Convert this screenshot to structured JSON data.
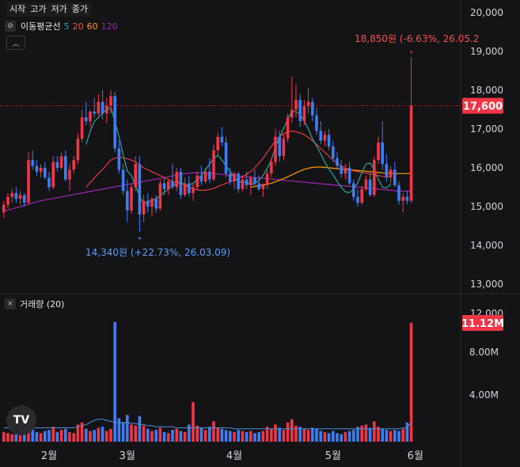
{
  "legend": {
    "ohlc_labels": [
      "시작",
      "고가",
      "저가",
      "종가"
    ],
    "ma_title": "이동평균선",
    "ma_periods": [
      {
        "label": "5",
        "color": "#26a69a"
      },
      {
        "label": "20",
        "color": "#ef5350"
      },
      {
        "label": "60",
        "color": "#ff9800"
      },
      {
        "label": "120",
        "color": "#9c27b0"
      }
    ],
    "volume_title": "거래량 (20)",
    "icons": [
      "eye-slash-icon",
      "close-icon",
      "chevron-up-icon",
      "tradingview-logo"
    ]
  },
  "colors": {
    "up": "#f23645",
    "down": "#2962ff",
    "down_light": "#3d7ef5",
    "background": "#141416",
    "ma5": "#26a69a",
    "ma20": "#e53946",
    "ma60": "#ff9800",
    "ma120": "#9c27b0",
    "vol_ma": "#4a90d9"
  },
  "chart_data": {
    "type": "candlestick",
    "price_axis": {
      "min": 12000,
      "max": 20000,
      "ticks": [
        "20,000",
        "19,000",
        "18,000",
        "17,000",
        "16,000",
        "15,000",
        "14,000",
        "13,000",
        "12,000"
      ]
    },
    "volume_axis": {
      "ticks": [
        "12.00M",
        "8.00M",
        "4.00M"
      ]
    },
    "x_labels": [
      "2월",
      "3월",
      "4월",
      "5월",
      "6월"
    ],
    "current_price": "17,600",
    "current_volume": "11.12M",
    "annotation_high": "18,850원 (-6.63%, 26.05.2",
    "annotation_low": "14,340원 (+22.73%, 26.03.09)",
    "last_close": 17600,
    "high_value": 18850,
    "low_value": 14340,
    "ohlcv": [
      [
        14850,
        15150,
        14700,
        15050,
        0.9
      ],
      [
        15050,
        15350,
        14950,
        15250,
        0.8
      ],
      [
        15250,
        15450,
        15100,
        15350,
        0.7
      ],
      [
        15350,
        15500,
        15100,
        15200,
        0.9
      ],
      [
        15200,
        15400,
        15050,
        15300,
        0.6
      ],
      [
        15300,
        15350,
        15000,
        15100,
        0.8
      ],
      [
        15100,
        16400,
        15050,
        16200,
        1.6
      ],
      [
        16200,
        16450,
        15950,
        16050,
        1.2
      ],
      [
        16050,
        16200,
        15800,
        15900,
        0.9
      ],
      [
        15900,
        16100,
        15750,
        16000,
        0.8
      ],
      [
        16000,
        16150,
        15700,
        15750,
        1.0
      ],
      [
        15750,
        15900,
        15400,
        15500,
        1.1
      ],
      [
        15500,
        16300,
        15450,
        16150,
        1.4
      ],
      [
        16150,
        16300,
        15900,
        16000,
        0.9
      ],
      [
        16000,
        16400,
        15950,
        16300,
        1.1
      ],
      [
        16300,
        16450,
        15650,
        15700,
        1.2
      ],
      [
        15700,
        16100,
        15400,
        15950,
        0.9
      ],
      [
        15950,
        16300,
        15850,
        16200,
        0.8
      ],
      [
        16200,
        16900,
        16100,
        16750,
        1.6
      ],
      [
        16750,
        17500,
        16650,
        17300,
        1.8
      ],
      [
        17300,
        17700,
        17100,
        17200,
        1.2
      ],
      [
        17200,
        17500,
        17050,
        17450,
        1.0
      ],
      [
        17450,
        17800,
        17300,
        17400,
        1.1
      ],
      [
        17400,
        17900,
        17350,
        17700,
        1.3
      ],
      [
        17700,
        18000,
        17250,
        17400,
        1.4
      ],
      [
        17400,
        17800,
        17150,
        17600,
        1.0
      ],
      [
        17600,
        18000,
        17400,
        17850,
        1.2
      ],
      [
        17850,
        17950,
        16400,
        16500,
        11.2
      ],
      [
        16500,
        16700,
        15850,
        15950,
        2.2
      ],
      [
        15950,
        16100,
        15300,
        15400,
        1.8
      ],
      [
        15400,
        15700,
        14600,
        14900,
        2.5
      ],
      [
        14900,
        15600,
        14800,
        15500,
        1.6
      ],
      [
        15500,
        16300,
        15400,
        16100,
        1.5
      ],
      [
        16100,
        16300,
        14340,
        14800,
        2.4
      ],
      [
        14800,
        15300,
        14600,
        15150,
        1.5
      ],
      [
        15150,
        15350,
        14850,
        15000,
        1.2
      ],
      [
        15000,
        15250,
        14750,
        15200,
        1.0
      ],
      [
        15200,
        15300,
        14850,
        14950,
        1.1
      ],
      [
        14950,
        15700,
        14900,
        15600,
        1.3
      ],
      [
        15600,
        15750,
        15300,
        15450,
        0.9
      ],
      [
        15450,
        15700,
        15300,
        15650,
        0.8
      ],
      [
        15650,
        16100,
        15450,
        15500,
        1.1
      ],
      [
        15500,
        16000,
        15400,
        15900,
        1.2
      ],
      [
        15900,
        16000,
        15200,
        15300,
        1.0
      ],
      [
        15300,
        15750,
        15250,
        15600,
        0.9
      ],
      [
        15600,
        15800,
        15250,
        15350,
        1.6
      ],
      [
        15350,
        15600,
        15150,
        15500,
        3.7
      ],
      [
        15500,
        15900,
        15450,
        15800,
        1.5
      ],
      [
        15800,
        16050,
        15550,
        15650,
        1.3
      ],
      [
        15650,
        16000,
        15600,
        15900,
        1.1
      ],
      [
        15900,
        16250,
        15600,
        15700,
        1.4
      ],
      [
        15700,
        16600,
        15650,
        16450,
        1.9
      ],
      [
        16450,
        16900,
        16350,
        16800,
        1.3
      ],
      [
        16800,
        17050,
        16550,
        16650,
        1.2
      ],
      [
        16650,
        16800,
        15750,
        15850,
        1.1
      ],
      [
        15850,
        16000,
        15550,
        15650,
        1.0
      ],
      [
        15650,
        15900,
        15450,
        15850,
        0.9
      ],
      [
        15850,
        15900,
        15350,
        15450,
        1.1
      ],
      [
        15450,
        15800,
        15400,
        15700,
        1.0
      ],
      [
        15700,
        15900,
        15450,
        15550,
        0.9
      ],
      [
        15550,
        15800,
        15300,
        15750,
        1.0
      ],
      [
        15750,
        15950,
        15550,
        15600,
        0.8
      ],
      [
        15600,
        15800,
        15400,
        15450,
        0.9
      ],
      [
        15450,
        15600,
        15250,
        15550,
        1.0
      ],
      [
        15550,
        15950,
        15450,
        15850,
        1.4
      ],
      [
        15850,
        16250,
        15750,
        16150,
        1.2
      ],
      [
        16150,
        17000,
        16050,
        16800,
        1.6
      ],
      [
        16800,
        16950,
        16150,
        16300,
        1.3
      ],
      [
        16300,
        16900,
        16200,
        16750,
        1.1
      ],
      [
        16750,
        17400,
        16650,
        17300,
        1.8
      ],
      [
        17300,
        18350,
        17150,
        17500,
        2.1
      ],
      [
        17500,
        18150,
        17300,
        17750,
        1.5
      ],
      [
        17750,
        17900,
        17050,
        17200,
        1.4
      ],
      [
        17200,
        17750,
        17100,
        17600,
        1.2
      ],
      [
        17600,
        18050,
        17400,
        17700,
        1.1
      ],
      [
        17700,
        17800,
        17200,
        17350,
        1.3
      ],
      [
        17350,
        17550,
        16850,
        16950,
        1.2
      ],
      [
        16950,
        17200,
        16600,
        16700,
        1.0
      ],
      [
        16700,
        16950,
        16550,
        16850,
        0.9
      ],
      [
        16850,
        17000,
        16450,
        16550,
        0.8
      ],
      [
        16550,
        16700,
        16150,
        16250,
        1.0
      ],
      [
        16250,
        16400,
        15950,
        16050,
        0.8
      ],
      [
        16050,
        16200,
        15750,
        15850,
        0.7
      ],
      [
        15850,
        16100,
        15700,
        16000,
        0.9
      ],
      [
        16000,
        16150,
        15550,
        15600,
        1.0
      ],
      [
        15600,
        15700,
        15150,
        15250,
        1.1
      ],
      [
        15250,
        15450,
        15000,
        15100,
        1.4
      ],
      [
        15100,
        15550,
        15050,
        15450,
        1.5
      ],
      [
        15450,
        15800,
        15400,
        15700,
        1.6
      ],
      [
        15700,
        15900,
        15250,
        15300,
        1.3
      ],
      [
        15300,
        16300,
        15250,
        16200,
        1.9
      ],
      [
        16200,
        16800,
        16100,
        16650,
        1.4
      ],
      [
        16650,
        17200,
        15950,
        16100,
        1.2
      ],
      [
        16100,
        16350,
        15650,
        15750,
        1.1
      ],
      [
        15750,
        16050,
        15600,
        15950,
        1.0
      ],
      [
        15950,
        16150,
        15500,
        15550,
        1.1
      ],
      [
        15550,
        15650,
        15050,
        15150,
        1.0
      ],
      [
        15150,
        15350,
        14850,
        15250,
        1.2
      ],
      [
        15250,
        15400,
        15050,
        15150,
        1.8
      ],
      [
        15150,
        18850,
        15100,
        17600,
        11.12
      ]
    ],
    "ma": {
      "ma5": {
        "start": 20,
        "values": [
          16600,
          16950,
          17200,
          17300,
          17420,
          17500,
          17560,
          17200,
          16800,
          16330,
          15920,
          15800,
          15530,
          15270,
          15070,
          15130,
          15150,
          15210,
          15270,
          15380,
          15440,
          15540,
          15590,
          15640,
          15550,
          15560,
          15600,
          15700,
          15800,
          15950,
          16100,
          16230,
          16330,
          16200,
          16050,
          15910,
          15750,
          15650,
          15620,
          15630,
          15560,
          15600,
          15670,
          15800,
          15990,
          16200,
          16540,
          16790,
          17020,
          17250,
          17460,
          17450,
          17380,
          17200,
          17000,
          16750,
          16560,
          16360,
          16140,
          15970,
          15820,
          15650,
          15500,
          15380,
          15360,
          15450,
          15610,
          15880,
          16100,
          16120,
          15950,
          15700,
          15500,
          15480,
          15580
        ]
      },
      "ma20": {
        "start": 20,
        "values": [
          15500,
          15620,
          15740,
          15850,
          15960,
          16080,
          16200,
          16250,
          16270,
          16260,
          16230,
          16200,
          16150,
          16080,
          16000,
          15950,
          15900,
          15850,
          15800,
          15750,
          15700,
          15650,
          15620,
          15600,
          15560,
          15500,
          15460,
          15430,
          15420,
          15420,
          15440,
          15470,
          15520,
          15560,
          15600,
          15640,
          15680,
          15720,
          15770,
          15830,
          15900,
          16000,
          16120,
          16250,
          16400,
          16550,
          16700,
          16800,
          16880,
          16930,
          16950,
          16930,
          16900,
          16850,
          16780,
          16700,
          16600,
          16500,
          16400,
          16300,
          16200,
          16120,
          16050,
          15990,
          15950,
          15920,
          15900,
          15880,
          15860,
          15840,
          15820,
          15800,
          15780,
          15770,
          15760
        ]
      },
      "ma60": {
        "start": 60,
        "values": [
          15500,
          15520,
          15540,
          15560,
          15580,
          15600,
          15640,
          15680,
          15720,
          15770,
          15820,
          15870,
          15920,
          15960,
          15990,
          16010,
          16020,
          16020,
          16010,
          16000,
          15990,
          15980,
          15970,
          15960,
          15950,
          15940,
          15930,
          15920,
          15910,
          15900,
          15890,
          15880,
          15870,
          15860,
          15850,
          15850,
          15850,
          15850,
          15850,
          15860
        ]
      },
      "ma120": {
        "start": 0,
        "values": [
          14880,
          14910,
          14940,
          14970,
          15000,
          15030,
          15060,
          15090,
          15120,
          15150,
          15170,
          15190,
          15210,
          15230,
          15250,
          15270,
          15290,
          15310,
          15330,
          15350,
          15370,
          15390,
          15410,
          15430,
          15450,
          15470,
          15490,
          15510,
          15530,
          15550,
          15570,
          15590,
          15610,
          15630,
          15650,
          15670,
          15690,
          15710,
          15730,
          15750,
          15770,
          15790,
          15810,
          15830,
          15850,
          15860,
          15870,
          15870,
          15870,
          15870,
          15860,
          15850,
          15840,
          15830,
          15820,
          15810,
          15800,
          15790,
          15780,
          15770,
          15760,
          15750,
          15740,
          15730,
          15720,
          15710,
          15700,
          15690,
          15680,
          15670,
          15660,
          15650,
          15640,
          15630,
          15620,
          15610,
          15600,
          15590,
          15580,
          15570,
          15560,
          15550,
          15540,
          15530,
          15520,
          15510,
          15500,
          15490,
          15480,
          15470,
          15460,
          15450,
          15440,
          15430,
          15420,
          15410,
          15400,
          15400,
          15400,
          15400
        ]
      }
    },
    "volume_ma": [
      1.3,
      1.3,
      1.2,
      1.2,
      1.2,
      1.2,
      1.2,
      1.3,
      1.3,
      1.3,
      1.3,
      1.3,
      1.3,
      1.3,
      1.3,
      1.3,
      1.3,
      1.3,
      1.4,
      1.5,
      1.6,
      1.8,
      2.0,
      2.1,
      2.1,
      2.0,
      1.9,
      1.8,
      1.8,
      1.8,
      1.8,
      1.7,
      1.7,
      1.6,
      1.6,
      1.5,
      1.5,
      1.4,
      1.4,
      1.4,
      1.4,
      1.4,
      1.3,
      1.3,
      1.3,
      1.3,
      1.3,
      1.3,
      1.3,
      1.3,
      1.3,
      1.3,
      1.3,
      1.3,
      1.3,
      1.3,
      1.2,
      1.2,
      1.2,
      1.2,
      1.2,
      1.2,
      1.2,
      1.2,
      1.2,
      1.2,
      1.2,
      1.2,
      1.2,
      1.2,
      1.2,
      1.2,
      1.2,
      1.2,
      1.2,
      1.2,
      1.2,
      1.2,
      1.2,
      1.2,
      1.2,
      1.2,
      1.2,
      1.2,
      1.2,
      1.2,
      1.2,
      1.2,
      1.2,
      1.2,
      1.2,
      1.2,
      1.2,
      1.2,
      1.2,
      1.2,
      1.2,
      1.3,
      1.3,
      1.8
    ]
  }
}
